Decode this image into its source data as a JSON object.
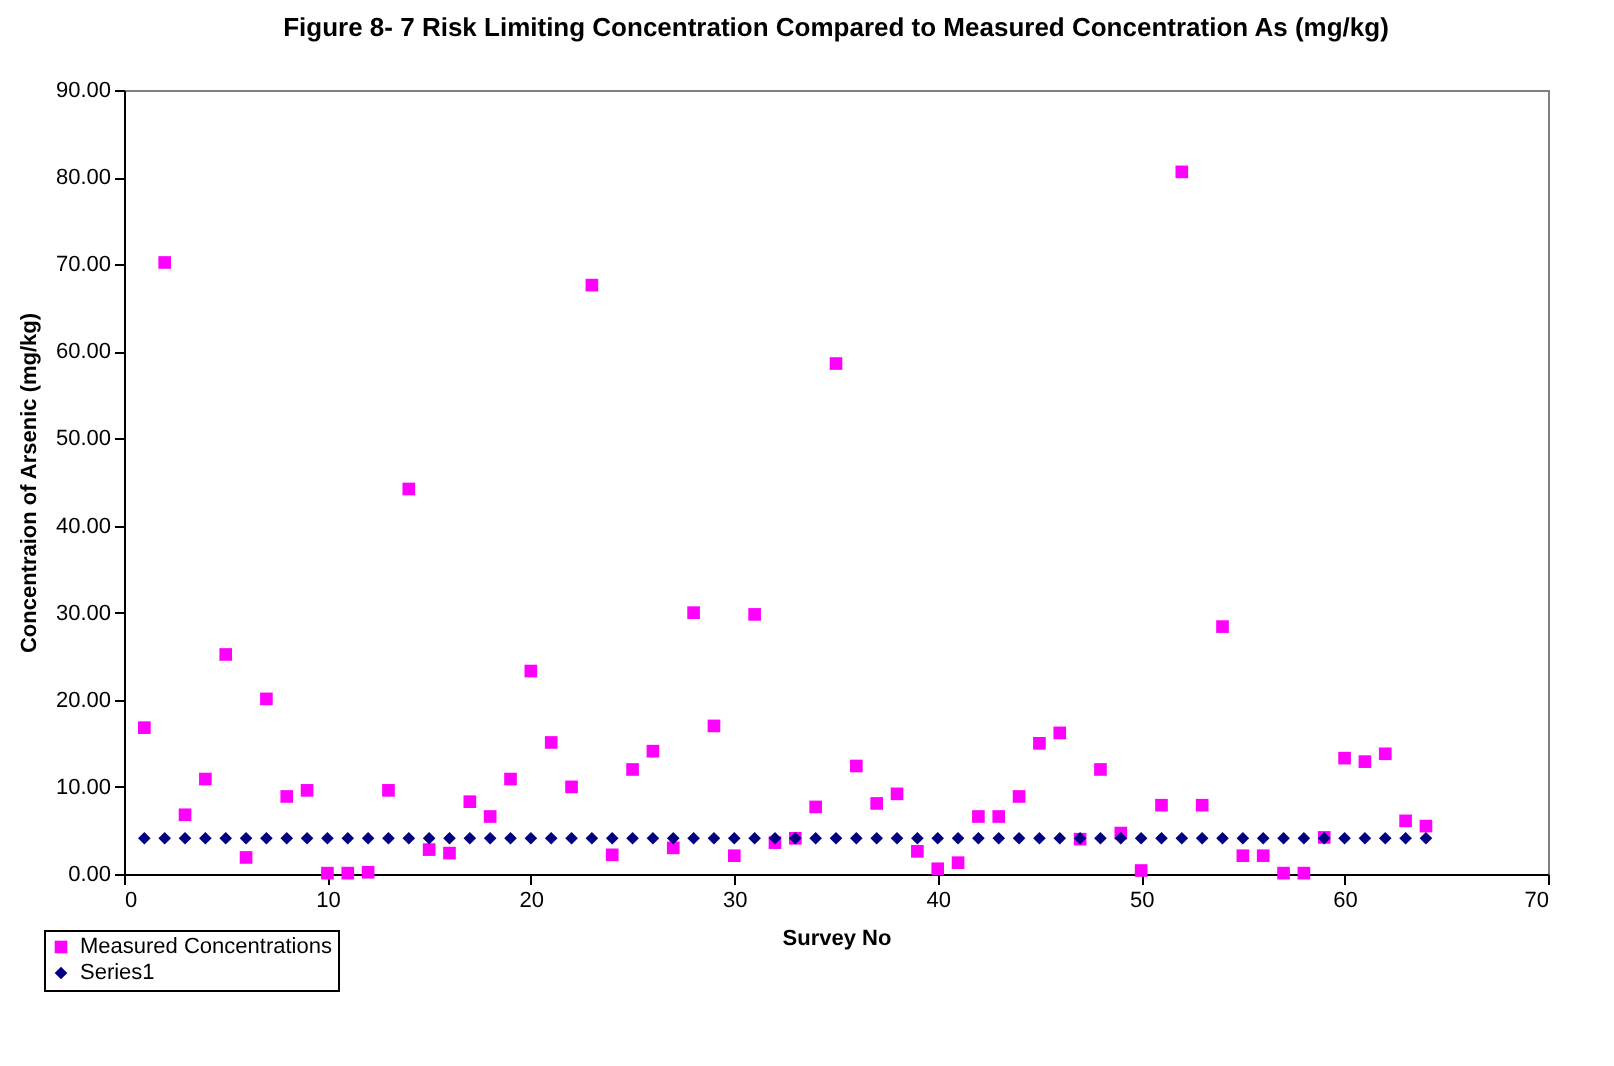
{
  "chart_data": {
    "type": "scatter",
    "title": "Figure 8- 7 Risk Limiting Concentration Compared to Measured Concentration As (mg/kg)",
    "xlabel": "Survey No",
    "ylabel": "Concentraion of Arsenic (mg/kg)",
    "x": [
      1,
      2,
      3,
      4,
      5,
      6,
      7,
      8,
      9,
      10,
      11,
      12,
      13,
      14,
      15,
      16,
      17,
      18,
      19,
      20,
      21,
      22,
      23,
      24,
      25,
      26,
      27,
      28,
      29,
      30,
      31,
      32,
      33,
      34,
      35,
      36,
      37,
      38,
      39,
      40,
      41,
      42,
      43,
      44,
      45,
      46,
      47,
      48,
      49,
      50,
      51,
      52,
      53,
      54,
      55,
      56,
      57,
      58,
      59,
      60,
      61,
      62,
      63,
      64
    ],
    "series": [
      {
        "name": "Measured Concentrations",
        "color": "#ff00ff",
        "marker": "square",
        "values": [
          16.8,
          70.2,
          6.8,
          10.9,
          25.2,
          1.9,
          20.1,
          8.9,
          9.6,
          0.1,
          0.1,
          0.2,
          9.6,
          44.2,
          2.8,
          2.4,
          8.3,
          6.6,
          10.9,
          23.3,
          15.1,
          10.0,
          67.6,
          2.2,
          12.0,
          14.1,
          3.0,
          30.0,
          17.0,
          2.1,
          29.8,
          3.6,
          4.1,
          7.7,
          58.6,
          12.4,
          8.1,
          9.2,
          2.6,
          0.6,
          1.3,
          6.6,
          6.6,
          8.9,
          15.0,
          16.2,
          4.0,
          12.0,
          4.7,
          0.4,
          7.9,
          80.6,
          7.9,
          28.4,
          2.1,
          2.1,
          0.1,
          0.1,
          4.2,
          13.3,
          12.9,
          13.8,
          6.1,
          5.5
        ]
      },
      {
        "name": "Series1",
        "color": "#000080",
        "marker": "diamond",
        "values": [
          4.1,
          4.1,
          4.1,
          4.1,
          4.1,
          4.1,
          4.1,
          4.1,
          4.1,
          4.1,
          4.1,
          4.1,
          4.1,
          4.1,
          4.1,
          4.1,
          4.1,
          4.1,
          4.1,
          4.1,
          4.1,
          4.1,
          4.1,
          4.1,
          4.1,
          4.1,
          4.1,
          4.1,
          4.1,
          4.1,
          4.1,
          4.1,
          4.1,
          4.1,
          4.1,
          4.1,
          4.1,
          4.1,
          4.1,
          4.1,
          4.1,
          4.1,
          4.1,
          4.1,
          4.1,
          4.1,
          4.1,
          4.1,
          4.1,
          4.1,
          4.1,
          4.1,
          4.1,
          4.1,
          4.1,
          4.1,
          4.1,
          4.1,
          4.1,
          4.1,
          4.1,
          4.1,
          4.1,
          4.1
        ]
      }
    ],
    "xlim": [
      0,
      70
    ],
    "xticks": [
      0,
      10,
      20,
      30,
      40,
      50,
      60,
      70
    ],
    "ylim": [
      0,
      90
    ],
    "yticks": [
      {
        "value": 0,
        "label": "0.00"
      },
      {
        "value": 10,
        "label": "10.00"
      },
      {
        "value": 20,
        "label": "20.00"
      },
      {
        "value": 30,
        "label": "30.00"
      },
      {
        "value": 40,
        "label": "40.00"
      },
      {
        "value": 50,
        "label": "50.00"
      },
      {
        "value": 60,
        "label": "60.00"
      },
      {
        "value": 70,
        "label": "70.00"
      },
      {
        "value": 80,
        "label": "80.00"
      },
      {
        "value": 90,
        "label": "90.00"
      }
    ],
    "grid": false,
    "legend": "bottom left"
  }
}
